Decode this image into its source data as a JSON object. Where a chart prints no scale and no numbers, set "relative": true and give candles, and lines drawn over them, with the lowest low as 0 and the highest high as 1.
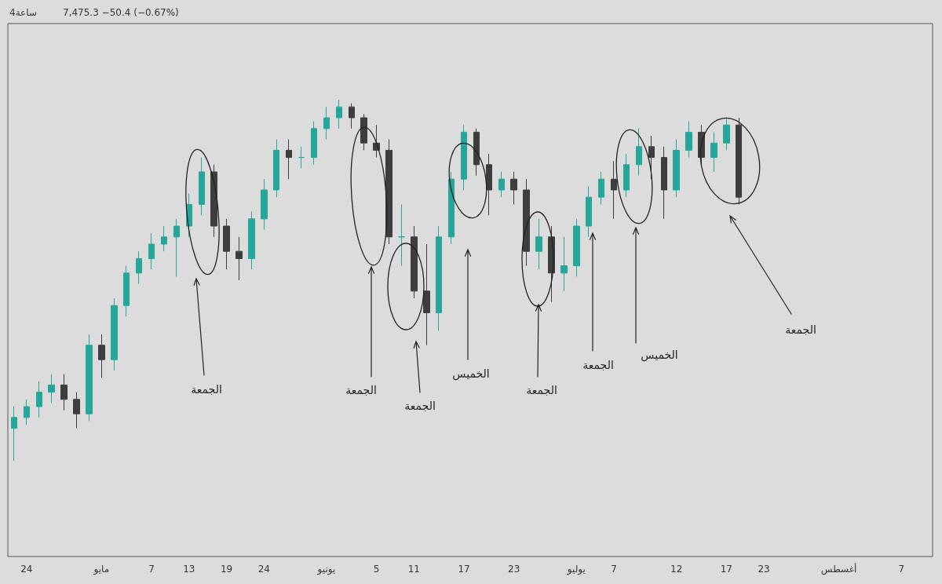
{
  "chart_data": {
    "type": "candlestick",
    "title": "4ساعة",
    "subtitle": "7,475.3 −50.4 (−0.67%)",
    "relative": true,
    "colors": [
      "#26a69a",
      "#26a69a",
      "#26a69a",
      "#26a69a",
      "#3d3d3d",
      "#3d3d3d",
      "#26a69a",
      "#3d3d3d",
      "#26a69a",
      "#26a69a",
      "#26a69a",
      "#26a69a",
      "#26a69a",
      "#26a69a",
      "#26a69a",
      "#26a69a",
      "#3d3d3d",
      "#3d3d3d",
      "#3d3d3d",
      "#26a69a",
      "#26a69a",
      "#26a69a",
      "#3d3d3d",
      "#26a69a",
      "#26a69a",
      "#26a69a",
      "#26a69a",
      "#3d3d3d",
      "#3d3d3d",
      "#3d3d3d",
      "#3d3d3d",
      "#26a69a",
      "#3d3d3d",
      "#3d3d3d",
      "#26a69a",
      "#26a69a",
      "#26a69a",
      "#3d3d3d",
      "#3d3d3d",
      "#26a69a",
      "#3d3d3d",
      "#3d3d3d",
      "#26a69a",
      "#3d3d3d",
      "#26a69a",
      "#26a69a",
      "#26a69a",
      "#26a69a",
      "#3d3d3d",
      "#26a69a",
      "#26a69a",
      "#3d3d3d",
      "#3d3d3d",
      "#26a69a",
      "#26a69a",
      "#3d3d3d",
      "#26a69a",
      "#26a69a",
      "#3d3d3d",
      null,
      null,
      null,
      null,
      null,
      null,
      null,
      null,
      null,
      null,
      null,
      null,
      null,
      null,
      null
    ],
    "tick_labels": "x",
    "categories": [
      null,
      "24",
      null,
      null,
      null,
      null,
      null,
      "مايو",
      null,
      null,
      null,
      "7",
      null,
      null,
      "13",
      null,
      null,
      "19",
      null,
      null,
      "24",
      null,
      null,
      null,
      null,
      "يونيو",
      null,
      null,
      null,
      "5",
      null,
      null,
      "11",
      null,
      null,
      null,
      "17",
      null,
      null,
      null,
      "23",
      null,
      null,
      null,
      null,
      "يوليو",
      null,
      null,
      "7",
      null,
      null,
      null,
      null,
      "12",
      null,
      null,
      null,
      "17",
      null,
      null,
      "23",
      null,
      null,
      null,
      null,
      null,
      "أغسطس",
      null,
      null,
      null,
      null,
      "7",
      null,
      null
    ],
    "ohlc": [
      [
        0.09,
        0.15,
        0,
        0.12
      ],
      [
        0.12,
        0.17,
        0.1,
        0.15
      ],
      [
        0.15,
        0.22,
        0.12,
        0.19
      ],
      [
        0.19,
        0.24,
        0.16,
        0.21
      ],
      [
        0.21,
        0.24,
        0.14,
        0.17
      ],
      [
        0.17,
        0.19,
        0.09,
        0.13
      ],
      [
        0.13,
        0.35,
        0.11,
        0.32
      ],
      [
        0.32,
        0.35,
        0.23,
        0.28
      ],
      [
        0.28,
        0.45,
        0.25,
        0.43
      ],
      [
        0.43,
        0.54,
        0.4,
        0.52
      ],
      [
        0.52,
        0.58,
        0.49,
        0.56
      ],
      [
        0.56,
        0.63,
        0.53,
        0.6
      ],
      [
        0.6,
        0.65,
        0.58,
        0.62
      ],
      [
        0.62,
        0.67,
        0.51,
        0.65
      ],
      [
        0.65,
        0.74,
        0.62,
        0.71
      ],
      [
        0.71,
        0.84,
        0.68,
        0.8
      ],
      [
        0.8,
        0.82,
        0.62,
        0.65
      ],
      [
        0.65,
        0.67,
        0.53,
        0.58
      ],
      [
        0.58,
        0.62,
        0.5,
        0.56
      ],
      [
        0.56,
        0.69,
        0.53,
        0.67
      ],
      [
        0.67,
        0.78,
        0.64,
        0.75
      ],
      [
        0.75,
        0.89,
        0.73,
        0.86
      ],
      [
        0.86,
        0.89,
        0.78,
        0.84
      ],
      [
        0.84,
        0.87,
        0.81,
        0.84
      ],
      [
        0.84,
        0.94,
        0.82,
        0.92
      ],
      [
        0.92,
        0.98,
        0.89,
        0.95
      ],
      [
        0.95,
        1,
        0.92,
        0.98
      ],
      [
        0.98,
        0.99,
        0.92,
        0.95
      ],
      [
        0.95,
        0.96,
        0.86,
        0.88
      ],
      [
        0.88,
        0.93,
        0.84,
        0.86
      ],
      [
        0.86,
        0.89,
        0.6,
        0.62
      ],
      [
        0.62,
        0.71,
        0.54,
        0.62
      ],
      [
        0.62,
        0.65,
        0.45,
        0.47
      ],
      [
        0.47,
        0.6,
        0.32,
        0.41
      ],
      [
        0.41,
        0.65,
        0.36,
        0.62
      ],
      [
        0.62,
        0.8,
        0.6,
        0.78
      ],
      [
        0.78,
        0.93,
        0.75,
        0.91
      ],
      [
        0.91,
        0.92,
        0.79,
        0.82
      ],
      [
        0.82,
        0.85,
        0.68,
        0.75
      ],
      [
        0.75,
        0.8,
        0.73,
        0.78
      ],
      [
        0.78,
        0.8,
        0.71,
        0.75
      ],
      [
        0.75,
        0.78,
        0.54,
        0.58
      ],
      [
        0.58,
        0.67,
        0.53,
        0.62
      ],
      [
        0.62,
        0.65,
        0.44,
        0.52
      ],
      [
        0.52,
        0.62,
        0.47,
        0.54
      ],
      [
        0.54,
        0.67,
        0.51,
        0.65
      ],
      [
        0.65,
        0.76,
        0.62,
        0.73
      ],
      [
        0.73,
        0.8,
        0.71,
        0.78
      ],
      [
        0.78,
        0.83,
        0.67,
        0.75
      ],
      [
        0.75,
        0.85,
        0.73,
        0.82
      ],
      [
        0.82,
        0.92,
        0.79,
        0.87
      ],
      [
        0.87,
        0.9,
        0.78,
        0.84
      ],
      [
        0.84,
        0.87,
        0.67,
        0.75
      ],
      [
        0.75,
        0.89,
        0.73,
        0.86
      ],
      [
        0.86,
        0.94,
        0.84,
        0.91
      ],
      [
        0.91,
        0.93,
        0.82,
        0.84
      ],
      [
        0.84,
        0.91,
        0.8,
        0.88
      ],
      [
        0.88,
        0.95,
        0.86,
        0.93
      ],
      [
        0.93,
        0.95,
        0.71,
        0.73
      ],
      null,
      null,
      null,
      null,
      null,
      null,
      null,
      null,
      null,
      null,
      null,
      null,
      null,
      null,
      null
    ],
    "annotations": [
      "الجمعة",
      "الجمعة",
      "الجمعة",
      "الخميس",
      "الجمعة",
      "الجمعة",
      "الخميس",
      "الجمعة"
    ]
  }
}
